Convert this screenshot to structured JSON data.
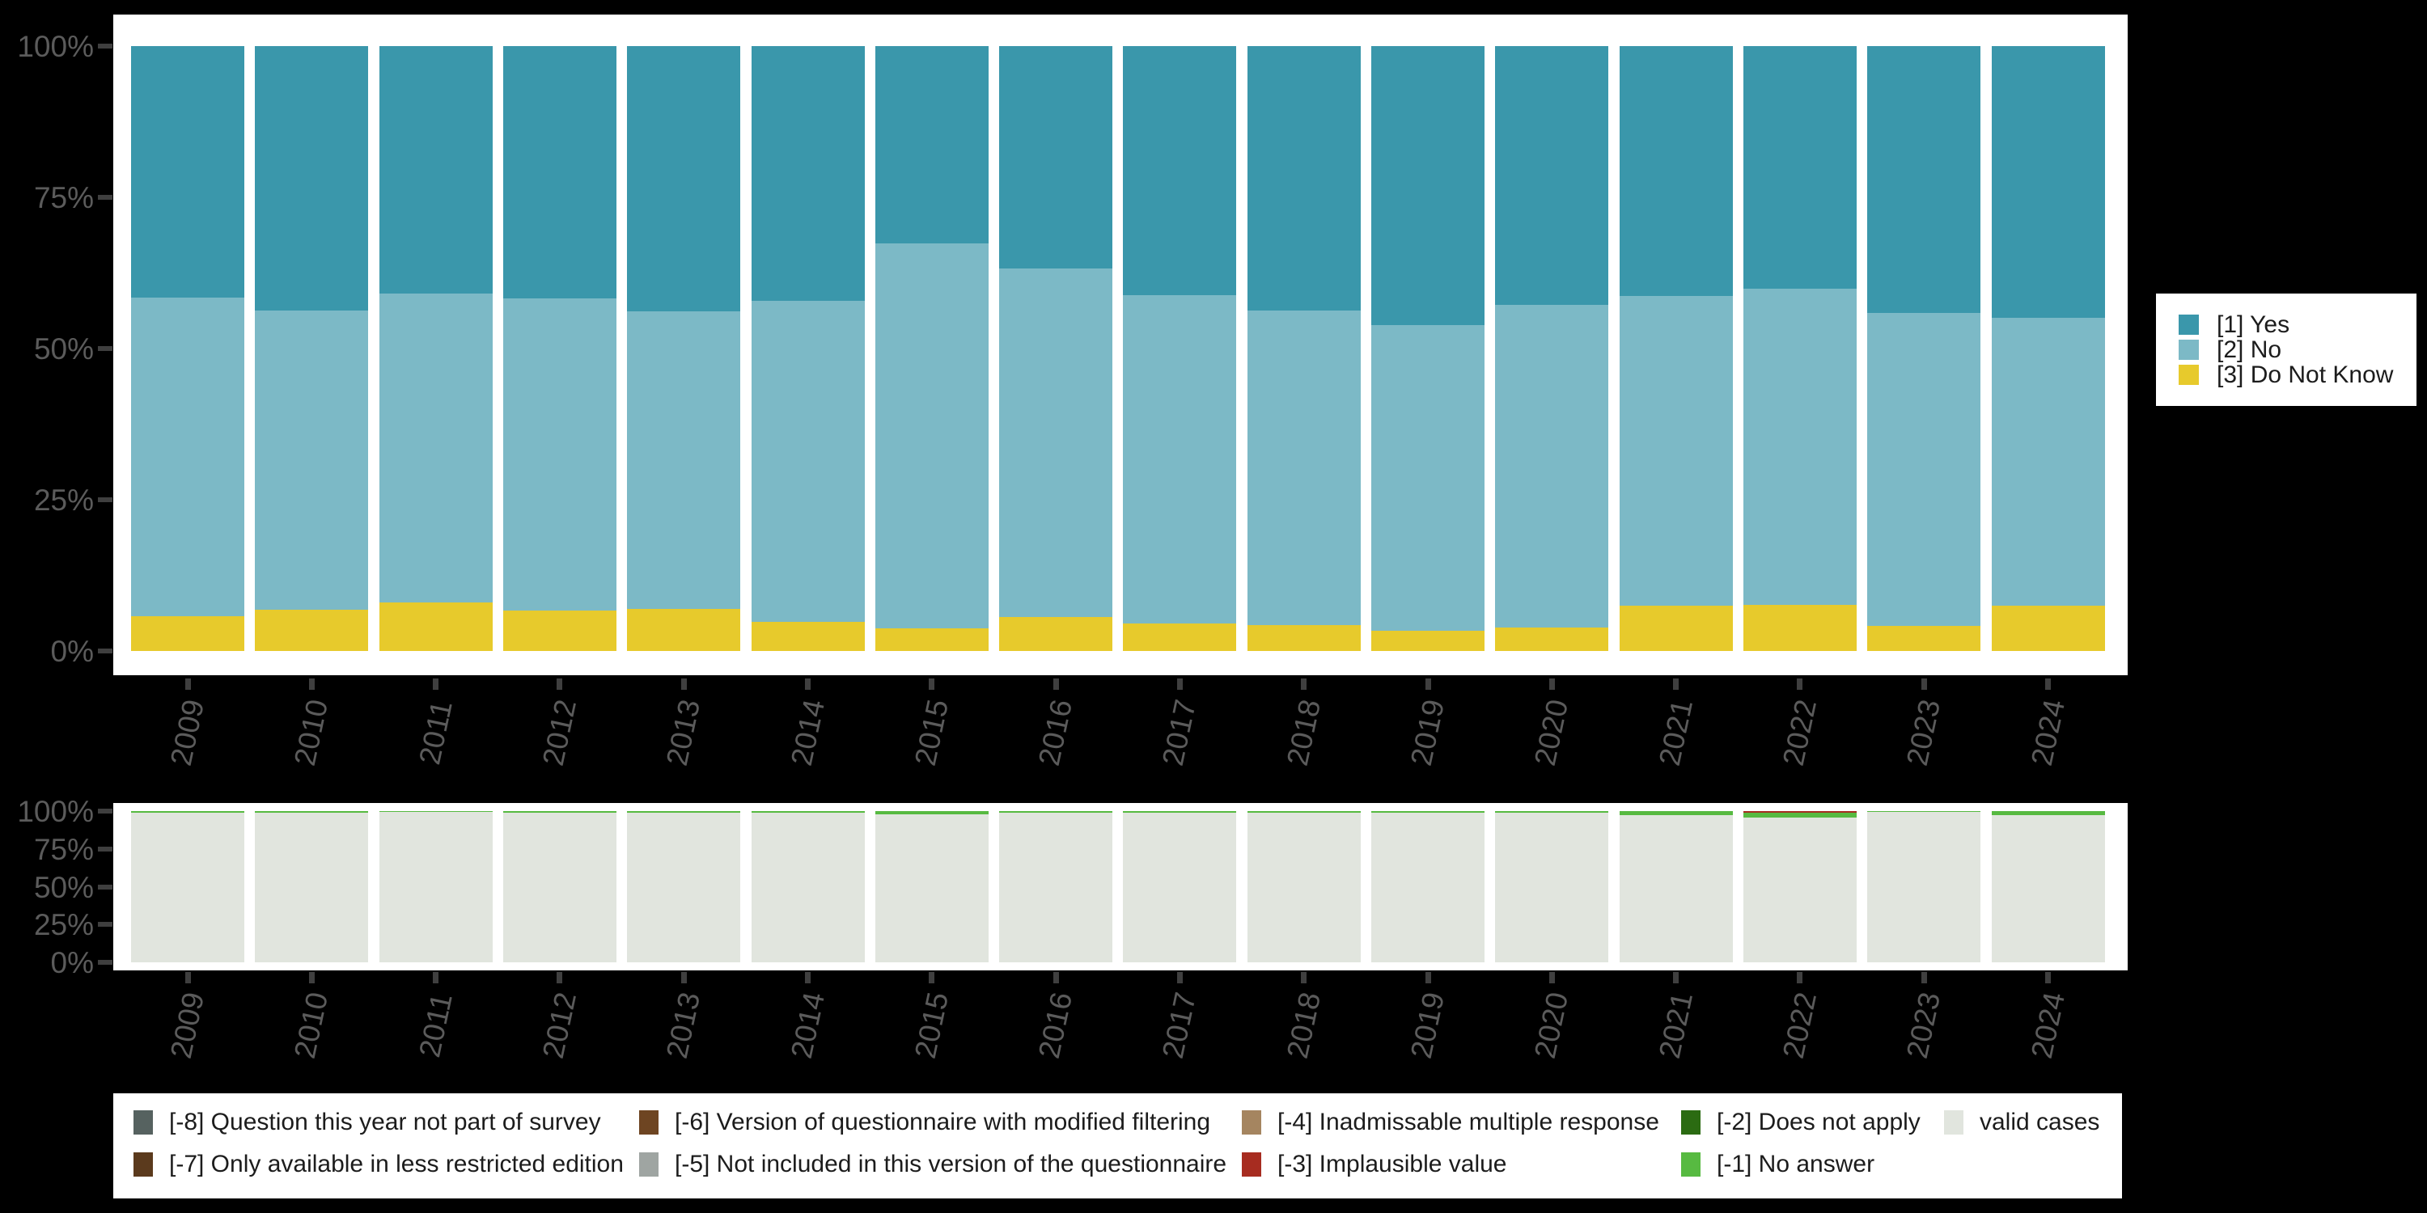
{
  "figure": {
    "background_color": "#000000",
    "plot_background_color": "#ffffff",
    "axis_text_color": "#5b5b5b"
  },
  "chart_data": [
    {
      "type": "bar",
      "subtype": "stacked-percentage-column",
      "title": "",
      "categories": [
        "2009",
        "2010",
        "2011",
        "2012",
        "2013",
        "2014",
        "2015",
        "2016",
        "2017",
        "2018",
        "2019",
        "2020",
        "2021",
        "2022",
        "2023",
        "2024"
      ],
      "series": [
        {
          "name": "[1] Yes",
          "color": "#3a97ab",
          "values": [
            41.6,
            43.7,
            40.9,
            41.7,
            43.9,
            42.1,
            32.6,
            36.8,
            41.2,
            43.7,
            46.1,
            42.8,
            41.3,
            40.1,
            44.1,
            44.9
          ]
        },
        {
          "name": "[2] No",
          "color": "#7cb9c6",
          "values": [
            52.7,
            49.5,
            51.1,
            51.6,
            49.1,
            53.1,
            63.7,
            57.6,
            54.3,
            52.0,
            50.6,
            53.3,
            51.2,
            52.3,
            51.8,
            47.6
          ]
        },
        {
          "name": "[3] Do Not Know",
          "color": "#e7ca2c",
          "values": [
            5.7,
            6.8,
            8.0,
            6.7,
            7.0,
            4.8,
            3.7,
            5.6,
            4.5,
            4.3,
            3.3,
            3.9,
            7.5,
            7.6,
            4.1,
            7.5
          ]
        }
      ],
      "stack_order_bottom_to_top": [
        2,
        1,
        0
      ],
      "ylim": [
        0,
        100
      ],
      "ytick_labels": [
        "100%",
        "75%",
        "50%",
        "25%",
        "0%"
      ],
      "ytick_values": [
        100,
        75,
        50,
        25,
        0
      ],
      "grid": false,
      "legend_position": "right"
    },
    {
      "type": "bar",
      "subtype": "stacked-percentage-column",
      "title": "",
      "categories": [
        "2009",
        "2010",
        "2011",
        "2012",
        "2013",
        "2014",
        "2015",
        "2016",
        "2017",
        "2018",
        "2019",
        "2020",
        "2021",
        "2022",
        "2023",
        "2024"
      ],
      "series": [
        {
          "name": "valid cases",
          "color": "#e1e5de",
          "values": [
            99.0,
            99.0,
            99.4,
            99.0,
            99.0,
            99.0,
            97.8,
            99.0,
            99.0,
            99.0,
            99.0,
            99.0,
            97.1,
            95.9,
            99.2,
            97.3
          ]
        },
        {
          "name": "[-1] No answer",
          "color": "#57ba41",
          "values": [
            1.0,
            1.0,
            0.6,
            1.0,
            1.0,
            1.0,
            2.2,
            1.0,
            1.0,
            1.0,
            1.0,
            1.0,
            2.9,
            2.9,
            0.8,
            2.7
          ]
        },
        {
          "name": "[-3] Implausible value",
          "color": "#a72c20",
          "values": [
            0,
            0,
            0,
            0,
            0,
            0,
            0,
            0,
            0,
            0,
            0,
            0,
            0,
            1.2,
            0,
            0
          ]
        }
      ],
      "stack_order_bottom_to_top": [
        0,
        1,
        2
      ],
      "ylim": [
        0,
        100
      ],
      "ytick_labels": [
        "100%",
        "75%",
        "50%",
        "25%",
        "0%"
      ],
      "ytick_values": [
        100,
        75,
        50,
        25,
        0
      ],
      "grid": false,
      "legend_position": "bottom"
    }
  ],
  "legend_top_right": {
    "items": [
      {
        "label": "[1] Yes",
        "color": "#3a97ab"
      },
      {
        "label": "[2] No",
        "color": "#7cb9c6"
      },
      {
        "label": "[3] Do Not Know",
        "color": "#e7ca2c"
      }
    ]
  },
  "legend_bottom": {
    "columns": [
      {
        "items": [
          {
            "label": "[-8] Question this year not part of survey",
            "color": "#566260"
          },
          {
            "label": "[-7] Only available in less restricted edition",
            "color": "#5b3a1d"
          }
        ]
      },
      {
        "items": [
          {
            "label": "[-6] Version of questionnaire with modified filtering",
            "color": "#6e4522"
          },
          {
            "label": "[-5] Not included in this version of the questionnaire",
            "color": "#9fa5a2"
          }
        ]
      },
      {
        "items": [
          {
            "label": "[-4] Inadmissable multiple response",
            "color": "#a58560"
          },
          {
            "label": "[-3] Implausible value",
            "color": "#a72c20"
          }
        ]
      },
      {
        "items": [
          {
            "label": "[-2] Does not apply",
            "color": "#2b6b12"
          },
          {
            "label": "[-1] No answer",
            "color": "#57ba41"
          }
        ]
      },
      {
        "items": [
          {
            "label": "valid cases",
            "color": "#e1e5de"
          }
        ]
      }
    ]
  }
}
